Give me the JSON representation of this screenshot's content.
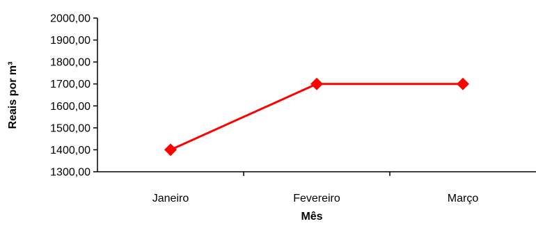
{
  "chart_data": {
    "type": "line",
    "title": "",
    "xlabel": "Mês",
    "ylabel": "Reais por m³",
    "categories": [
      "Janeiro",
      "Fevereiro",
      "Março"
    ],
    "series": [
      {
        "values": [
          1400,
          1700,
          1700
        ],
        "color": "#ff0000",
        "marker": "diamond"
      }
    ],
    "ylim": [
      1300,
      2000
    ],
    "ytick_step": 100,
    "ytick_labels": [
      "1300,00",
      "1400,00",
      "1500,00",
      "1600,00",
      "1700,00",
      "1800,00",
      "1900,00",
      "2000,00"
    ],
    "grid": false,
    "legend": "none"
  }
}
